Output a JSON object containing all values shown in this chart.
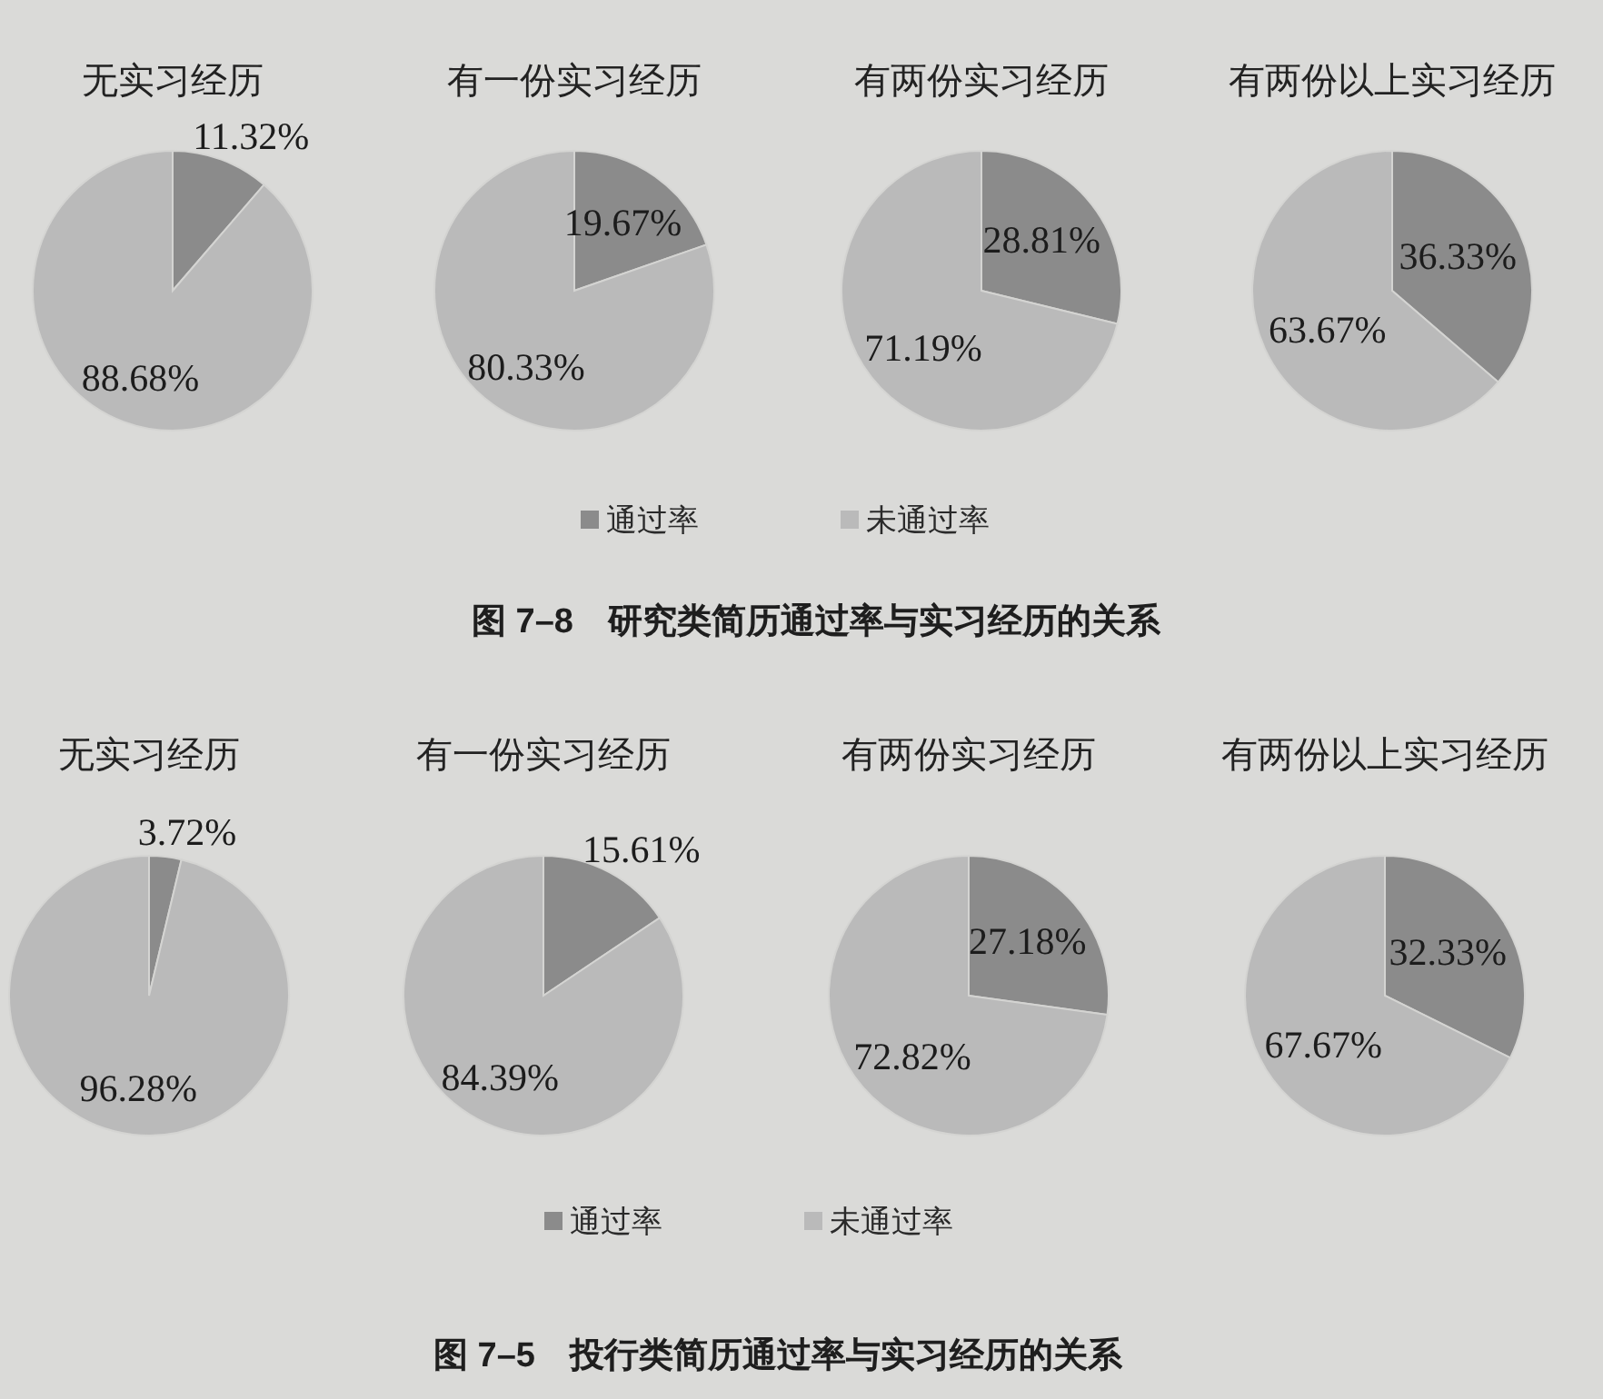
{
  "chart_data": [
    {
      "type": "pie",
      "title": "无实习经历",
      "categories": [
        "通过率",
        "未通过率"
      ],
      "values": [
        11.32,
        88.68
      ],
      "colors": [
        "#8b8b8b",
        "#bababa"
      ],
      "value_labels": [
        "11.32%",
        "88.68%"
      ],
      "legend": "bottom",
      "annotations": [
        "图 7–8　研究类简历通过率与实习经历的关系"
      ]
    },
    {
      "type": "pie",
      "title": "有一份实习经历",
      "values": [
        19.67,
        80.33
      ],
      "colors": [
        "#8b8b8b",
        "#bababa"
      ],
      "value_labels": [
        "19.67%",
        "80.33%"
      ]
    },
    {
      "type": "pie",
      "title": "有两份实习经历",
      "values": [
        28.81,
        71.19
      ],
      "colors": [
        "#8b8b8b",
        "#bababa"
      ],
      "value_labels": [
        "28.81%",
        "71.19%"
      ]
    },
    {
      "type": "pie",
      "title": "有两份以上实习经历",
      "values": [
        36.33,
        63.67
      ],
      "colors": [
        "#8b8b8b",
        "#bababa"
      ],
      "value_labels": [
        "36.33%",
        "63.67%"
      ]
    },
    {
      "type": "pie",
      "title": "无实习经历",
      "categories": [
        "通过率",
        "未通过率"
      ],
      "values": [
        3.72,
        96.28
      ],
      "colors": [
        "#8b8b8b",
        "#bababa"
      ],
      "value_labels": [
        "3.72%",
        "96.28%"
      ],
      "legend": "bottom",
      "annotations": [
        "图 7–5　投行类简历通过率与实习经历的关系"
      ]
    },
    {
      "type": "pie",
      "title": "有一份实习经历",
      "values": [
        15.61,
        84.39
      ],
      "colors": [
        "#8b8b8b",
        "#bababa"
      ],
      "value_labels": [
        "15.61%",
        "84.39%"
      ]
    },
    {
      "type": "pie",
      "title": "有两份实习经历",
      "values": [
        27.18,
        72.82
      ],
      "colors": [
        "#8b8b8b",
        "#bababa"
      ],
      "value_labels": [
        "27.18%",
        "72.82%"
      ]
    },
    {
      "type": "pie",
      "title": "有两份以上实习经历",
      "values": [
        32.33,
        67.67
      ],
      "colors": [
        "#8b8b8b",
        "#bababa"
      ],
      "value_labels": [
        "32.33%",
        "67.67%"
      ]
    }
  ]
}
